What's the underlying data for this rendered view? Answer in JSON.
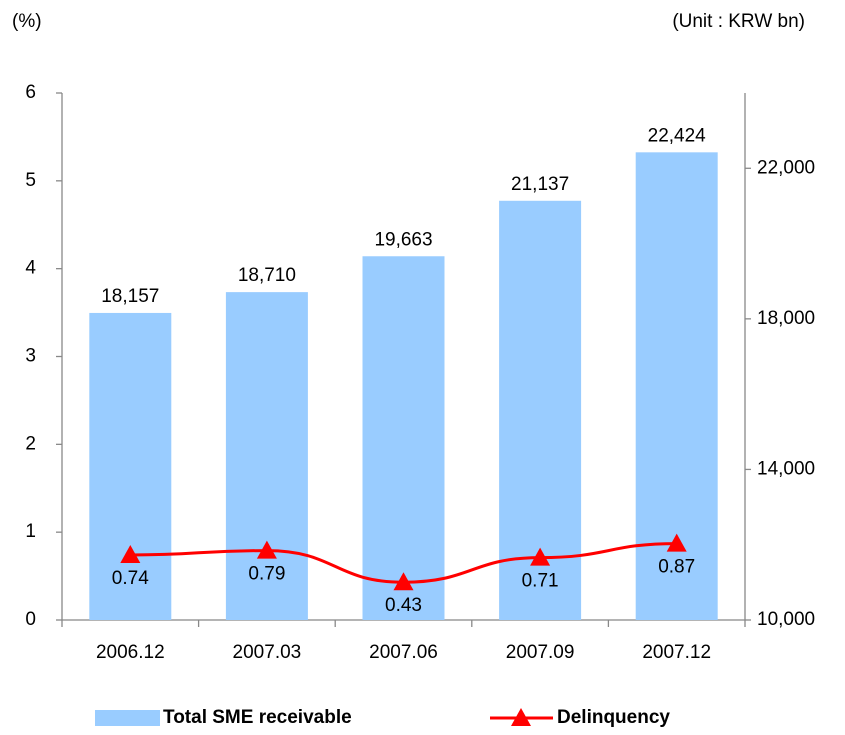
{
  "chart_data": {
    "type": "bar",
    "left_unit": "(%)",
    "right_unit": "(Unit : KRW bn)",
    "categories": [
      "2006.12",
      "2007.03",
      "2007.06",
      "2007.09",
      "2007.12"
    ],
    "series": [
      {
        "name": "Total SME receivable",
        "type": "bar",
        "axis": "y2",
        "color": "#99ccff",
        "values": [
          18157,
          18710,
          19663,
          21137,
          22424
        ],
        "value_labels": [
          "18,157",
          "18,710",
          "19,663",
          "21,137",
          "22,424"
        ]
      },
      {
        "name": "Delinquency",
        "type": "line",
        "color": "#ff0000",
        "values": [
          0.74,
          0.79,
          0.43,
          0.71,
          0.87
        ]
      }
    ],
    "ylim": [
      0,
      6
    ],
    "yticks": [
      0,
      1,
      2,
      3,
      4,
      5,
      6
    ],
    "y2lim": [
      10000,
      24000
    ],
    "y2ticks": [
      {
        "value": 10000,
        "label": "10,000"
      },
      {
        "value": 14000,
        "label": "14,000"
      },
      {
        "value": 18000,
        "label": "18,000"
      },
      {
        "value": 22000,
        "label": "22,000"
      }
    ],
    "grid": false,
    "legend": "bottom"
  }
}
